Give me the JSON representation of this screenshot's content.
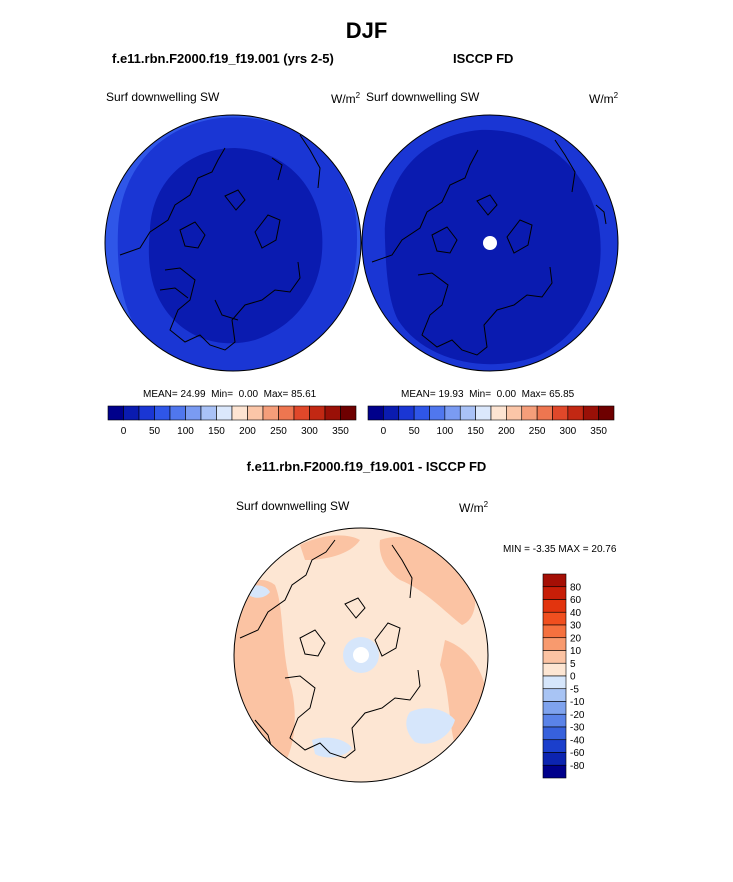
{
  "figure": {
    "season": "DJF",
    "left_title": "f.e11.rbn.F2000.f19_f19.001 (yrs 2-5)",
    "right_title": "ISCCP FD",
    "diff_title": "f.e11.rbn.F2000.f19_f19.001 - ISCCP FD"
  },
  "chart_data": [
    {
      "type": "heatmap",
      "projection": "north-polar-stereographic",
      "field": "Surf downwelling SW",
      "units_base": "W/m",
      "units_exp": "2",
      "stats": {
        "mean_label": "MEAN=",
        "mean": "24.99",
        "min_label": "Min=",
        "min": "0.00",
        "max_label": "Max=",
        "max": "85.61"
      },
      "colorbar": {
        "orientation": "horizontal",
        "levels": [
          0,
          25,
          50,
          75,
          100,
          125,
          150,
          175,
          200,
          225,
          250,
          275,
          300,
          325,
          350
        ],
        "tick_labels": [
          "0",
          "50",
          "100",
          "150",
          "200",
          "250",
          "300",
          "350"
        ],
        "colors": [
          "#00008b",
          "#0a1bb0",
          "#1a36d4",
          "#2f56e8",
          "#5077ee",
          "#7a9bf2",
          "#a9c2f7",
          "#dbe8fc",
          "#fde4d2",
          "#fbc6a8",
          "#f59e7a",
          "#ee7650",
          "#e0482a",
          "#c22813",
          "#9a1007",
          "#6e0000"
        ]
      },
      "regions": [
        {
          "name": "arctic-interior",
          "value_range": "0-25"
        },
        {
          "name": "mid-ring",
          "value_range": "25-50"
        },
        {
          "name": "outer-edge",
          "value_range": "50-75"
        }
      ]
    },
    {
      "type": "heatmap",
      "projection": "north-polar-stereographic",
      "field": "Surf downwelling SW",
      "units_base": "W/m",
      "units_exp": "2",
      "stats": {
        "mean_label": "MEAN=",
        "mean": "19.93",
        "min_label": "Min=",
        "min": "0.00",
        "max_label": "Max=",
        "max": "65.85"
      },
      "colorbar": {
        "orientation": "horizontal",
        "levels": [
          0,
          25,
          50,
          75,
          100,
          125,
          150,
          175,
          200,
          225,
          250,
          275,
          300,
          325,
          350
        ],
        "tick_labels": [
          "0",
          "50",
          "100",
          "150",
          "200",
          "250",
          "300",
          "350"
        ],
        "colors": [
          "#00008b",
          "#0a1bb0",
          "#1a36d4",
          "#2f56e8",
          "#5077ee",
          "#7a9bf2",
          "#a9c2f7",
          "#dbe8fc",
          "#fde4d2",
          "#fbc6a8",
          "#f59e7a",
          "#ee7650",
          "#e0482a",
          "#c22813",
          "#9a1007",
          "#6e0000"
        ]
      },
      "regions": [
        {
          "name": "arctic-interior",
          "value_range": "0-25"
        },
        {
          "name": "outer-edge",
          "value_range": "25-50"
        },
        {
          "name": "pole-missing",
          "value_range": "missing"
        }
      ]
    },
    {
      "type": "heatmap",
      "projection": "north-polar-stereographic",
      "field": "Surf downwelling SW",
      "units_base": "W/m",
      "units_exp": "2",
      "stats": {
        "min_label": "MIN =",
        "min": "-3.35",
        "max_label": "MAX =",
        "max": "20.76"
      },
      "colorbar": {
        "orientation": "vertical",
        "levels": [
          -80,
          -60,
          -40,
          -30,
          -20,
          -10,
          -5,
          0,
          5,
          10,
          20,
          30,
          40,
          60,
          80
        ],
        "tick_labels": [
          "80",
          "60",
          "40",
          "30",
          "20",
          "10",
          "5",
          "0",
          "-5",
          "-10",
          "-20",
          "-30",
          "-40",
          "-60",
          "-80"
        ],
        "colors_top_to_bottom": [
          "#a50f05",
          "#c81e08",
          "#e2340e",
          "#f04f1f",
          "#f5713f",
          "#f89a6e",
          "#fbc3a3",
          "#fde6d3",
          "#d6e6fb",
          "#a8c4f4",
          "#7fa3ee",
          "#5a83e8",
          "#3761dc",
          "#1b3fcc",
          "#0c24b0",
          "#00008b"
        ]
      },
      "regions": [
        {
          "name": "background",
          "value_range": "0-5"
        },
        {
          "name": "warm-patches",
          "value_range": "5-10"
        },
        {
          "name": "cool-patches",
          "value_range": "-5-0"
        }
      ]
    }
  ]
}
